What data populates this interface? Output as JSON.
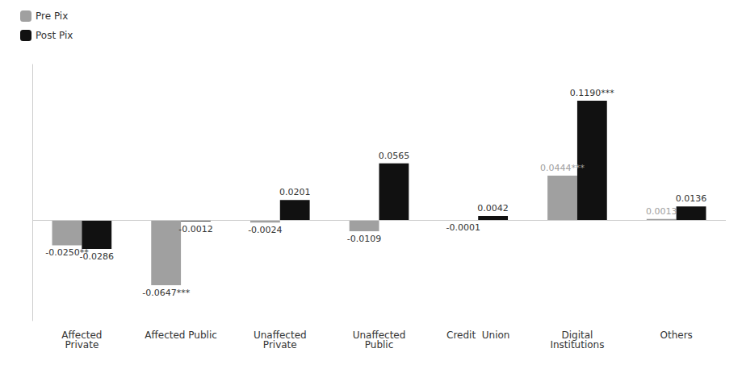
{
  "chart_data": {
    "type": "bar",
    "categories": [
      "Affected\nPrivate",
      "Affected Public",
      "Unaffected\nPrivate",
      "Unaffected\nPublic",
      "Credit  Union",
      "Digital\nInstitutions",
      "Others"
    ],
    "series": [
      {
        "name": "Pre Pix",
        "color": "#a0a0a0",
        "values": [
          -0.025,
          -0.0647,
          -0.0024,
          -0.0109,
          -0.0001,
          0.0444,
          0.0013
        ],
        "value_labels": [
          "-0.0250**",
          "-0.0647***",
          "-0.0024",
          "-0.0109",
          "-0.0001",
          "0.0444***",
          "0.0013"
        ]
      },
      {
        "name": "Post Pix",
        "color": "#111111",
        "values": [
          -0.0286,
          -0.0012,
          0.0201,
          0.0565,
          0.0042,
          0.119,
          0.0136
        ],
        "value_labels": [
          "-0.0286",
          "-0.0012",
          "0.0201",
          "0.0565",
          "0.0042",
          "0.1190***",
          "0.0136"
        ]
      }
    ],
    "ylim": [
      -0.1,
      0.155
    ],
    "data_labels": true,
    "grid": false,
    "legend": "upper left",
    "tick_labels": "x"
  }
}
